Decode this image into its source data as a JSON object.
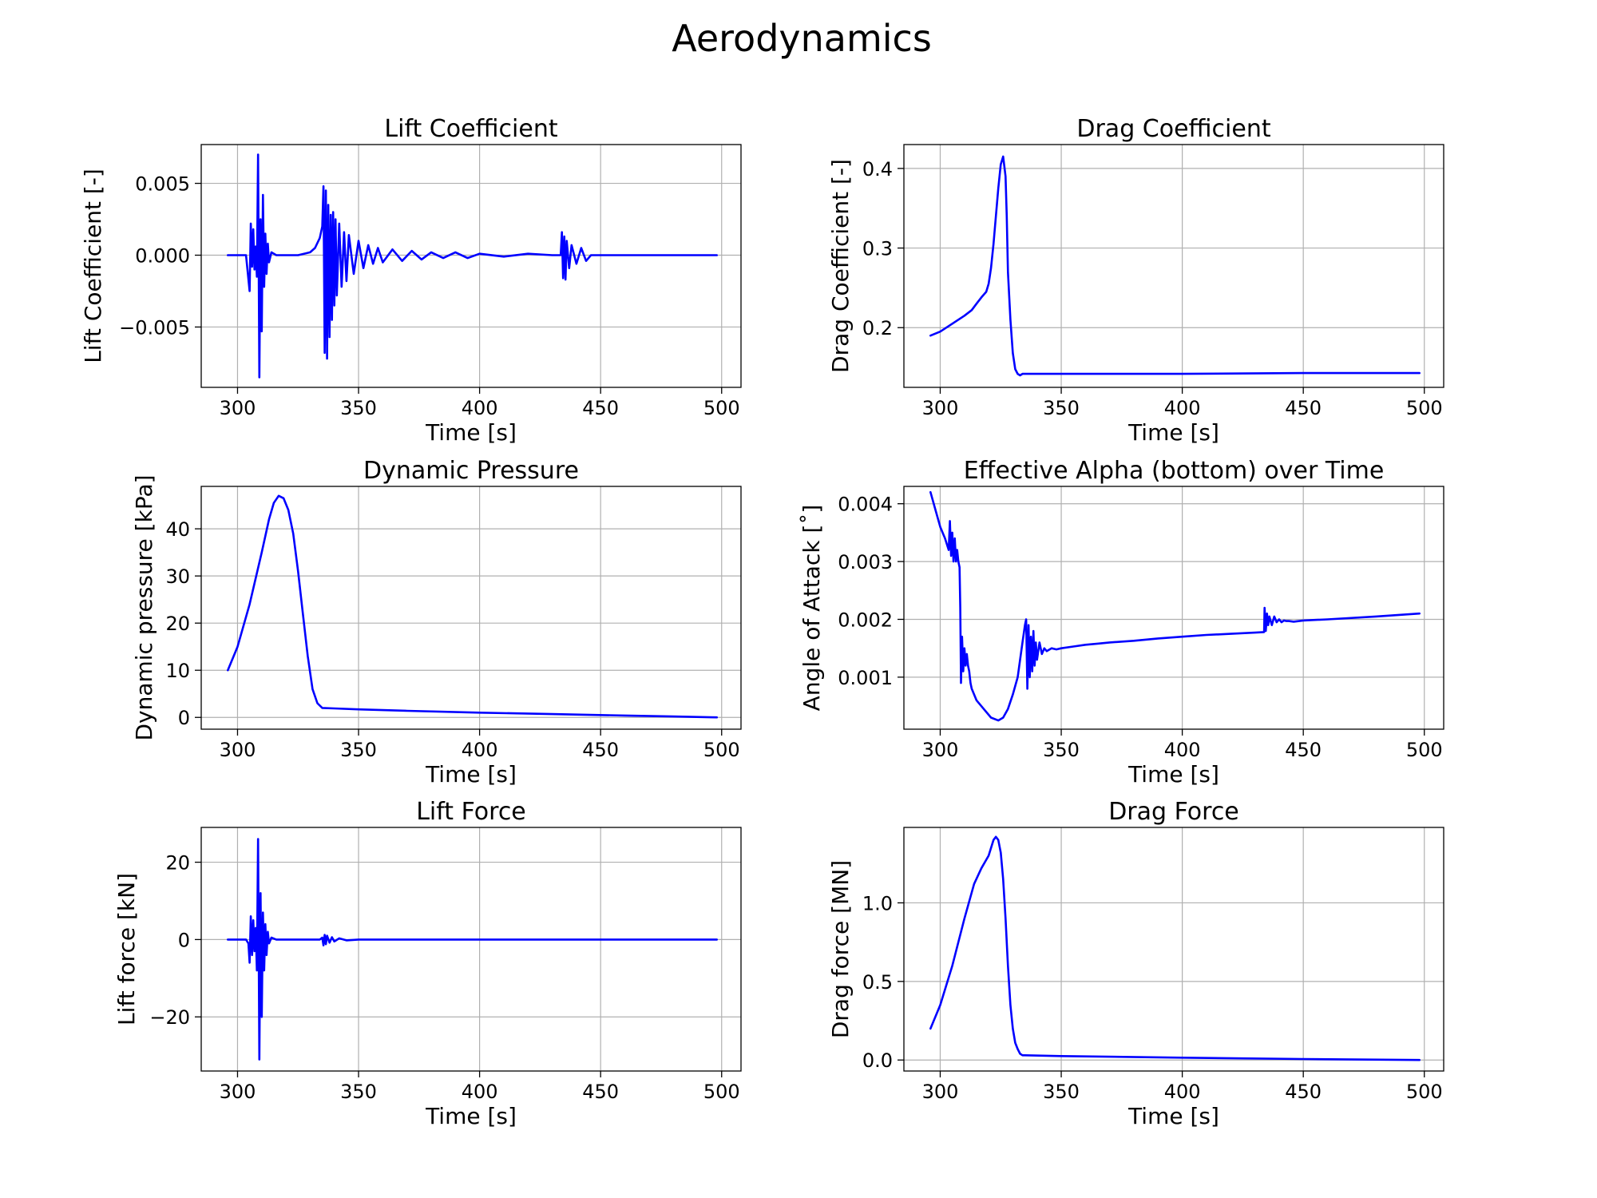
{
  "figure": {
    "title": "Aerodynamics"
  },
  "colors": {
    "series": "#0000ff",
    "grid": "#b0b0b0",
    "axes": "#000000"
  },
  "chart_data": [
    {
      "id": "lift-coefficient",
      "type": "line",
      "title": "Lift Coefficient",
      "xlabel": "Time [s]",
      "ylabel": "Lift Coefficient [-]",
      "xlim": [
        285,
        508
      ],
      "ylim": [
        -0.0092,
        0.0077
      ],
      "xticks": [
        300,
        350,
        400,
        450,
        500
      ],
      "xtick_labels": [
        "300",
        "350",
        "400",
        "450",
        "500"
      ],
      "yticks": [
        -0.005,
        0.0,
        0.005
      ],
      "ytick_labels": [
        "−0.005",
        "0.000",
        "0.005"
      ],
      "grid": true,
      "series": [
        {
          "values_x": [
            296,
            303.5,
            305,
            305.5,
            306,
            306.5,
            307,
            307.5,
            308,
            308.5,
            309,
            309.5,
            310,
            310.5,
            311,
            311.5,
            312,
            312.5,
            313,
            314,
            316,
            320,
            325,
            330,
            332,
            334,
            335,
            335.5,
            336,
            336.5,
            337,
            337.5,
            338,
            338.5,
            339,
            339.5,
            340,
            340.5,
            341,
            342,
            343,
            344,
            345,
            346,
            348,
            350,
            352,
            354,
            356,
            358,
            360,
            364,
            368,
            372,
            376,
            380,
            385,
            390,
            395,
            400,
            410,
            420,
            430,
            433.5,
            434,
            434.5,
            435,
            435.5,
            436,
            437,
            438,
            440,
            442,
            444,
            446,
            450,
            460,
            480,
            498
          ],
          "values_y": [
            0,
            0,
            -0.0025,
            0.0022,
            -0.0008,
            0.0018,
            -0.001,
            0.0006,
            -0.0015,
            0.007,
            -0.0085,
            0.0025,
            -0.0053,
            0.0042,
            -0.0022,
            0.0015,
            -0.0013,
            0.0008,
            -0.0005,
            0.0002,
            0,
            0,
            0,
            0.0002,
            0.0005,
            0.0012,
            0.002,
            0.0048,
            -0.0068,
            0.0045,
            -0.0072,
            0.0035,
            -0.0057,
            0.0028,
            -0.0045,
            0.003,
            -0.0035,
            0.0025,
            -0.0028,
            0.0022,
            -0.0022,
            0.0016,
            -0.0018,
            0.0014,
            -0.0013,
            0.001,
            -0.0009,
            0.0007,
            -0.0006,
            0.0005,
            -0.0005,
            0.0004,
            -0.0004,
            0.0003,
            -0.0003,
            0.0002,
            -0.0002,
            0.0002,
            -0.0002,
            0.0001,
            -0.0001,
            0.0001,
            0,
            0,
            0.0016,
            -0.0016,
            0.0013,
            -0.0017,
            0.001,
            -0.0009,
            0.0007,
            -0.0006,
            0.0005,
            -0.0004,
            0,
            0,
            0,
            0,
            0
          ]
        }
      ]
    },
    {
      "id": "drag-coefficient",
      "type": "line",
      "title": "Drag Coefficient",
      "xlabel": "Time [s]",
      "ylabel": "Drag Coefficient [-]",
      "xlim": [
        285,
        508
      ],
      "ylim": [
        0.125,
        0.43
      ],
      "xticks": [
        300,
        350,
        400,
        450,
        500
      ],
      "xtick_labels": [
        "300",
        "350",
        "400",
        "450",
        "500"
      ],
      "yticks": [
        0.2,
        0.3,
        0.4
      ],
      "ytick_labels": [
        "0.2",
        "0.3",
        "0.4"
      ],
      "grid": true,
      "series": [
        {
          "values_x": [
            296,
            300,
            305,
            310,
            313,
            315,
            317,
            319,
            320,
            321,
            322,
            323,
            324,
            325,
            326,
            327,
            327.5,
            328,
            329,
            330,
            331,
            332,
            333,
            334,
            336,
            350,
            400,
            450,
            498
          ],
          "values_y": [
            0.19,
            0.195,
            0.205,
            0.215,
            0.222,
            0.23,
            0.238,
            0.245,
            0.255,
            0.275,
            0.305,
            0.34,
            0.375,
            0.405,
            0.415,
            0.39,
            0.34,
            0.27,
            0.21,
            0.168,
            0.148,
            0.142,
            0.14,
            0.142,
            0.142,
            0.142,
            0.142,
            0.143,
            0.143
          ]
        }
      ]
    },
    {
      "id": "dynamic-pressure",
      "type": "line",
      "title": "Dynamic Pressure",
      "xlabel": "Time [s]",
      "ylabel": "Dynamic pressure [kPa]",
      "xlim": [
        285,
        508
      ],
      "ylim": [
        -2.5,
        49
      ],
      "xticks": [
        300,
        350,
        400,
        450,
        500
      ],
      "xtick_labels": [
        "300",
        "350",
        "400",
        "450",
        "500"
      ],
      "yticks": [
        0,
        10,
        20,
        30,
        40
      ],
      "ytick_labels": [
        "0",
        "10",
        "20",
        "30",
        "40"
      ],
      "grid": true,
      "series": [
        {
          "values_x": [
            296,
            300,
            305,
            310,
            313,
            315,
            317,
            319,
            321,
            323,
            325,
            327,
            329,
            331,
            333,
            335,
            340,
            350,
            370,
            400,
            430,
            460,
            480,
            498
          ],
          "values_y": [
            10,
            15,
            24,
            35,
            42,
            45.5,
            47,
            46.5,
            44,
            39,
            31,
            22,
            13,
            6,
            3,
            2,
            1.9,
            1.7,
            1.4,
            1,
            0.7,
            0.4,
            0.2,
            0
          ]
        }
      ]
    },
    {
      "id": "effective-alpha",
      "type": "line",
      "title": "Effective Alpha (bottom) over Time",
      "xlabel": "Time [s]",
      "ylabel": "Angle of Attack [˚]",
      "xlim": [
        285,
        508
      ],
      "ylim": [
        0.0001,
        0.0043
      ],
      "xticks": [
        300,
        350,
        400,
        450,
        500
      ],
      "xtick_labels": [
        "300",
        "350",
        "400",
        "450",
        "500"
      ],
      "yticks": [
        0.001,
        0.002,
        0.003,
        0.004
      ],
      "ytick_labels": [
        "0.001",
        "0.002",
        "0.003",
        "0.004"
      ],
      "grid": true,
      "series": [
        {
          "values_x": [
            296,
            298,
            300,
            302,
            303.5,
            304,
            304.5,
            305,
            305.5,
            306,
            306.5,
            307,
            307.5,
            308,
            308.3,
            308.6,
            309,
            309.5,
            310,
            310.5,
            311,
            311.5,
            312,
            312.5,
            313,
            315,
            318,
            321,
            324,
            326,
            328,
            330,
            332,
            333,
            334,
            335,
            335.5,
            336,
            336.5,
            337,
            337.5,
            338,
            338.5,
            339,
            339.5,
            340,
            341,
            342,
            343,
            344,
            346,
            348,
            350,
            355,
            360,
            365,
            370,
            380,
            390,
            400,
            410,
            420,
            430,
            433.8,
            434,
            434.5,
            435,
            435.5,
            436,
            437,
            438,
            439,
            440,
            441,
            442,
            443,
            444,
            446,
            450,
            460,
            480,
            498
          ],
          "values_y": [
            0.0042,
            0.0039,
            0.0036,
            0.0034,
            0.0032,
            0.0037,
            0.0031,
            0.0035,
            0.003,
            0.0034,
            0.003,
            0.0032,
            0.003,
            0.0029,
            0.0022,
            0.0009,
            0.0017,
            0.0011,
            0.0015,
            0.0012,
            0.0014,
            0.0012,
            0.0011,
            0.0009,
            0.0008,
            0.0006,
            0.00045,
            0.0003,
            0.00025,
            0.0003,
            0.00045,
            0.0007,
            0.001,
            0.0013,
            0.0016,
            0.0019,
            0.002,
            0.0008,
            0.0019,
            0.001,
            0.0017,
            0.0011,
            0.0018,
            0.0012,
            0.0016,
            0.0013,
            0.0016,
            0.0014,
            0.0015,
            0.00145,
            0.0015,
            0.00148,
            0.0015,
            0.00153,
            0.00156,
            0.00158,
            0.0016,
            0.00163,
            0.00167,
            0.0017,
            0.00173,
            0.00175,
            0.00177,
            0.00178,
            0.0022,
            0.0018,
            0.0021,
            0.0019,
            0.00205,
            0.0019,
            0.00205,
            0.00195,
            0.002,
            0.00195,
            0.00198,
            0.00197,
            0.00197,
            0.00196,
            0.00198,
            0.002,
            0.00205,
            0.0021
          ]
        }
      ]
    },
    {
      "id": "lift-force",
      "type": "line",
      "title": "Lift Force",
      "xlabel": "Time [s]",
      "ylabel": "Lift force [kN]",
      "xlim": [
        285,
        508
      ],
      "ylim": [
        -34,
        29
      ],
      "xticks": [
        300,
        350,
        400,
        450,
        500
      ],
      "xtick_labels": [
        "300",
        "350",
        "400",
        "450",
        "500"
      ],
      "yticks": [
        -20,
        0,
        20
      ],
      "ytick_labels": [
        "−20",
        "0",
        "20"
      ],
      "grid": true,
      "series": [
        {
          "values_x": [
            296,
            303.5,
            304.5,
            305,
            305.5,
            306,
            306.5,
            307,
            307.5,
            308,
            308.5,
            309,
            309.5,
            310,
            310.5,
            311,
            311.5,
            312,
            312.5,
            313,
            314,
            316,
            320,
            330,
            334,
            335,
            335.5,
            336,
            336.5,
            337,
            338,
            339,
            340,
            342,
            345,
            350,
            380,
            420,
            460,
            498
          ],
          "values_y": [
            0,
            0,
            -1,
            -6,
            6,
            -4,
            5,
            -3,
            3,
            -8,
            26,
            -31,
            12,
            -20,
            7,
            -8,
            4,
            -4,
            2,
            -1,
            0.5,
            0,
            0,
            0,
            0,
            0.5,
            -1.5,
            1.2,
            -1.2,
            1,
            -0.8,
            0.6,
            -0.5,
            0.3,
            -0.2,
            0,
            0,
            0,
            0,
            0
          ]
        }
      ]
    },
    {
      "id": "drag-force",
      "type": "line",
      "title": "Drag Force",
      "xlabel": "Time [s]",
      "ylabel": "Drag force [MN]",
      "xlim": [
        285,
        508
      ],
      "ylim": [
        -0.07,
        1.48
      ],
      "xticks": [
        300,
        350,
        400,
        450,
        500
      ],
      "xtick_labels": [
        "300",
        "350",
        "400",
        "450",
        "500"
      ],
      "yticks": [
        0.0,
        0.5,
        1.0
      ],
      "ytick_labels": [
        "0.0",
        "0.5",
        "1.0"
      ],
      "grid": true,
      "series": [
        {
          "values_x": [
            296,
            300,
            305,
            310,
            314,
            317,
            320,
            322,
            323,
            324,
            325,
            326,
            327,
            328,
            329,
            330,
            331,
            332,
            333,
            334,
            335,
            350,
            400,
            450,
            498
          ],
          "values_y": [
            0.2,
            0.35,
            0.6,
            0.9,
            1.12,
            1.22,
            1.3,
            1.4,
            1.42,
            1.4,
            1.32,
            1.15,
            0.9,
            0.6,
            0.35,
            0.2,
            0.11,
            0.07,
            0.04,
            0.03,
            0.03,
            0.025,
            0.015,
            0.006,
            0.0
          ]
        }
      ]
    }
  ]
}
